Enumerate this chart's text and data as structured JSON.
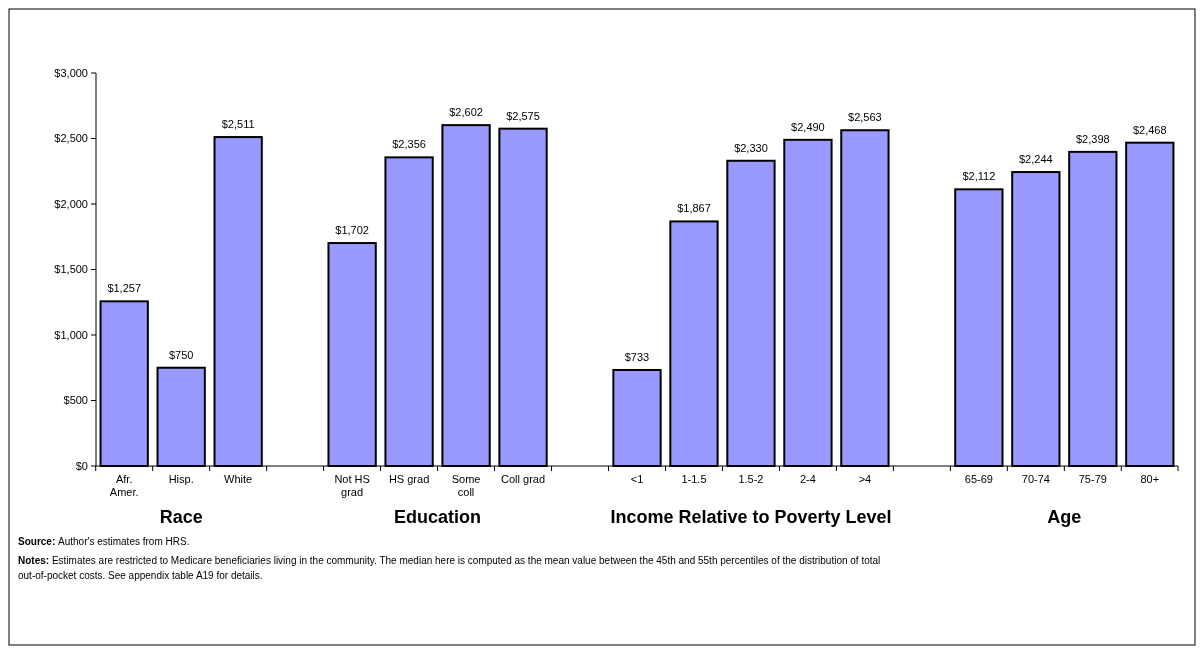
{
  "chart_data": {
    "type": "bar",
    "categories": [
      "Afr.\nAmer.",
      "Hisp.",
      "White",
      null,
      "Not HS\ngrad",
      "HS grad",
      "Some\ncoll",
      "Coll grad",
      null,
      "<1",
      "1-1.5",
      "1.5-2",
      "2-4",
      ">4",
      null,
      "65-69",
      "70-74",
      "75-79",
      "80+"
    ],
    "values": [
      1257,
      750,
      2511,
      null,
      1702,
      2356,
      2602,
      2575,
      null,
      733,
      1867,
      2330,
      2490,
      2563,
      null,
      2112,
      2244,
      2398,
      2468
    ],
    "value_labels": [
      "$1,257",
      "$750",
      "$2,511",
      null,
      "$1,702",
      "$2,356",
      "$2,602",
      "$2,575",
      null,
      "$733",
      "$1,867",
      "$2,330",
      "$2,490",
      "$2,563",
      null,
      "$2,112",
      "$2,244",
      "$2,398",
      "$2,468"
    ],
    "color": "#9999ff",
    "ylim": [
      0,
      3000
    ],
    "yticks": [
      {
        "value": 0,
        "label": "$0"
      },
      {
        "value": 500,
        "label": "$500"
      },
      {
        "value": 1000,
        "label": "$1,000"
      },
      {
        "value": 1500,
        "label": "$1,500"
      },
      {
        "value": 2000,
        "label": "$2,000"
      },
      {
        "value": 2500,
        "label": "$2,500"
      },
      {
        "value": 3000,
        "label": "$3,000"
      }
    ],
    "grid": false,
    "annotations": [
      "Race",
      "Education",
      "Income Relative to Poverty Level",
      "Age",
      "Source: Author's estimates from HRS.",
      "Notes: Estimates are restricted to Medicare beneficiaries living in the community.  The median here is computed as the mean value between the 45th and 55th percentiles of the distribution of total out-of-pocket costs. See appendix table A19 for details."
    ]
  }
}
